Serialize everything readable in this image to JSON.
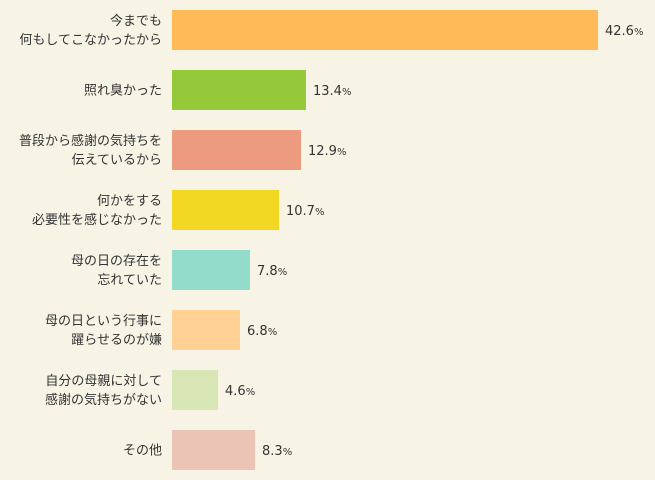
{
  "chart_data": {
    "type": "bar",
    "orientation": "horizontal",
    "categories": [
      [
        "今までも",
        "何もしてこなかったから"
      ],
      [
        "照れ臭かった"
      ],
      [
        "普段から感謝の気持ちを",
        "伝えているから"
      ],
      [
        "何かをする",
        "必要性を感じなかった"
      ],
      [
        "母の日の存在を",
        "忘れていた"
      ],
      [
        "母の日という行事に",
        "躍らせるのが嫌"
      ],
      [
        "自分の母親に対して",
        "感謝の気持ちがない"
      ],
      [
        "その他"
      ]
    ],
    "values": [
      42.6,
      13.4,
      12.9,
      10.7,
      7.8,
      6.8,
      4.6,
      8.3
    ],
    "value_unit": "%",
    "colors": [
      "#ffbb57",
      "#96c93a",
      "#ec9b7e",
      "#f2d823",
      "#93dbcb",
      "#ffd194",
      "#d8e6b6",
      "#ecc4b6"
    ],
    "xlim": [
      0,
      42.6
    ],
    "title": "",
    "xlabel": "",
    "ylabel": "",
    "grid": false,
    "legend": "none"
  }
}
